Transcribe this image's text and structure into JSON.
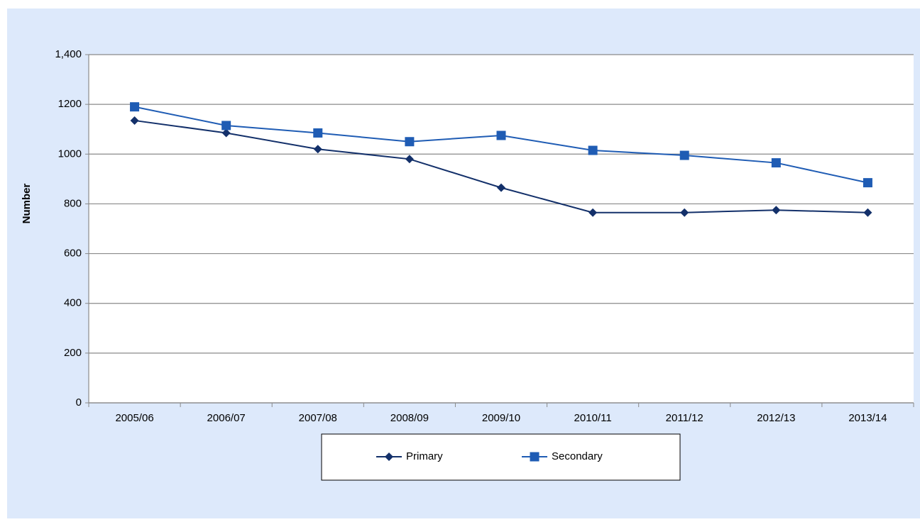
{
  "chart_data": {
    "type": "line",
    "y_label": "Number",
    "categories": [
      "2005/06",
      "2006/07",
      "2007/08",
      "2008/09",
      "2009/10",
      "2010/11",
      "2011/12",
      "2012/13",
      "2013/14"
    ],
    "series": [
      {
        "name": "Primary",
        "color": "#13306a",
        "marker": "diamond",
        "values": [
          1135,
          1085,
          1020,
          980,
          865,
          765,
          765,
          775,
          765
        ]
      },
      {
        "name": "Secondary",
        "color": "#1f5cb4",
        "marker": "square",
        "values": [
          1190,
          1115,
          1085,
          1050,
          1075,
          1015,
          995,
          965,
          885
        ]
      }
    ],
    "ylim": [
      0,
      1400
    ],
    "yticks": [
      0,
      200,
      400,
      600,
      800,
      1000,
      1200,
      {
        "value": 1400,
        "label": "1,400"
      }
    ],
    "grid": true,
    "legend": "bottom"
  }
}
